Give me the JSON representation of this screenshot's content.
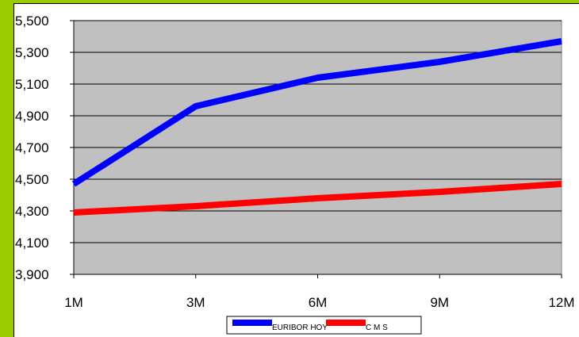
{
  "chart_data": {
    "type": "line",
    "categories": [
      "1M",
      "3M",
      "6M",
      "9M",
      "12M"
    ],
    "series": [
      {
        "name": "EURIBOR HOY",
        "color": "#0000ff",
        "values": [
          4.47,
          4.96,
          5.14,
          5.24,
          5.37
        ]
      },
      {
        "name": "C M S",
        "color": "#ff0000",
        "values": [
          4.29,
          4.33,
          4.38,
          4.42,
          4.47
        ]
      }
    ],
    "yticks": [
      "3,900",
      "4,100",
      "4,300",
      "4,500",
      "4,700",
      "4,900",
      "5,100",
      "5,300",
      "5,500"
    ],
    "ylim": [
      3.9,
      5.5
    ],
    "grid": true,
    "legend_position": "bottom",
    "plot_background": "#c0c0c0",
    "page_background": "#99cc00"
  }
}
